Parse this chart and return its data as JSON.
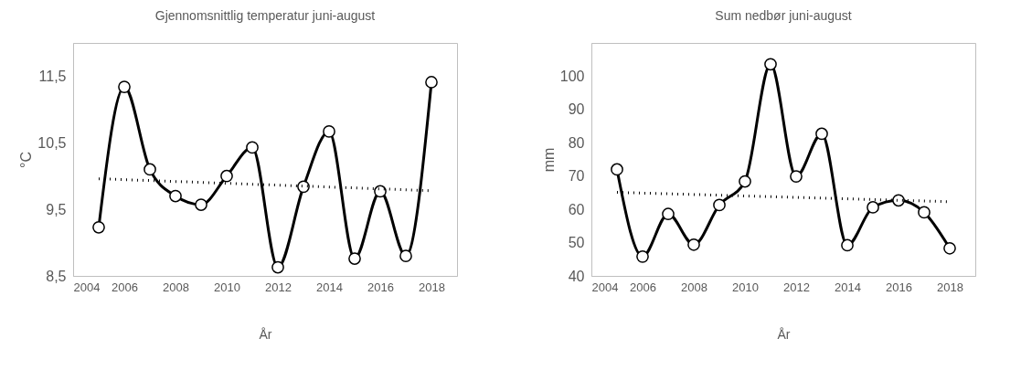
{
  "chart_data": [
    {
      "type": "line",
      "title": "Gjennomsnittlig temperatur juni-august",
      "xlabel": "År",
      "ylabel": "°C",
      "xlim": [
        2004,
        2019
      ],
      "xticks": [
        2004,
        2006,
        2008,
        2010,
        2012,
        2014,
        2016,
        2018
      ],
      "ylim": [
        8.5,
        12.0
      ],
      "yticks": [
        {
          "value": 8.5,
          "label": "8,5"
        },
        {
          "value": 9.5,
          "label": "9,5"
        },
        {
          "value": 10.5,
          "label": "10,5"
        },
        {
          "value": 11.5,
          "label": "11,5"
        }
      ],
      "grid": false,
      "series": [
        {
          "color": "#000000",
          "marker": "circle",
          "line_style": "solid",
          "x": [
            2005,
            2006,
            2007,
            2008,
            2009,
            2010,
            2011,
            2012,
            2013,
            2014,
            2015,
            2016,
            2017,
            2018
          ],
          "values": [
            9.23,
            11.34,
            10.1,
            9.7,
            9.57,
            10.0,
            10.43,
            8.63,
            9.84,
            10.67,
            8.76,
            9.77,
            8.8,
            11.41
          ]
        },
        {
          "color": "#000000",
          "marker": "none",
          "line_style": "dotted",
          "x": [
            2005,
            2018
          ],
          "values": [
            9.96,
            9.78
          ]
        }
      ]
    },
    {
      "type": "line",
      "title": "Sum nedbør juni-august",
      "xlabel": "År",
      "ylabel": "mm",
      "xlim": [
        2004,
        2019
      ],
      "xticks": [
        2004,
        2006,
        2008,
        2010,
        2012,
        2014,
        2016,
        2018
      ],
      "ylim": [
        40,
        110
      ],
      "yticks": [
        40,
        50,
        60,
        70,
        80,
        90,
        100
      ],
      "grid": false,
      "series": [
        {
          "color": "#000000",
          "marker": "circle",
          "line_style": "solid",
          "x": [
            2005,
            2006,
            2007,
            2008,
            2009,
            2010,
            2011,
            2012,
            2013,
            2014,
            2015,
            2016,
            2017,
            2018
          ],
          "values": [
            72.0,
            45.8,
            58.6,
            49.4,
            61.3,
            68.4,
            103.6,
            69.9,
            82.7,
            49.2,
            60.6,
            62.7,
            59.1,
            48.3
          ]
        },
        {
          "color": "#000000",
          "marker": "none",
          "line_style": "dotted",
          "x": [
            2005,
            2018
          ],
          "values": [
            65.1,
            62.3
          ]
        }
      ]
    }
  ]
}
